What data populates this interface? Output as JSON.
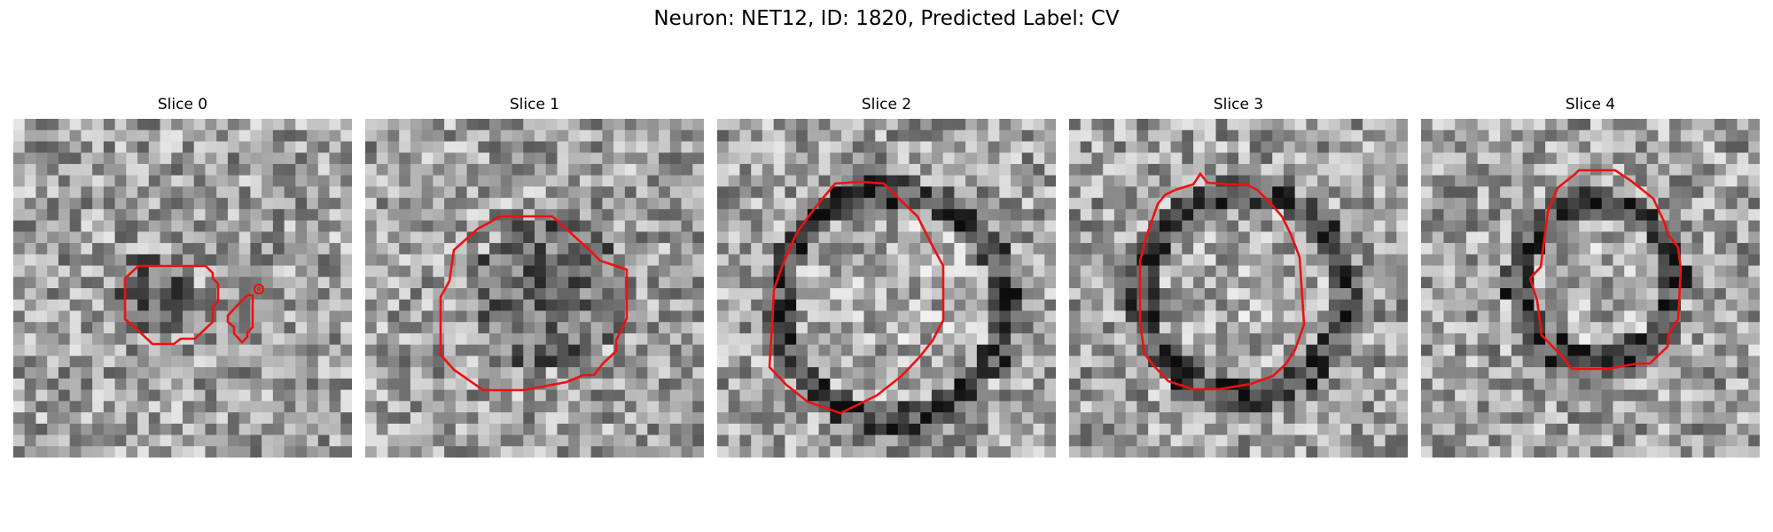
{
  "figure": {
    "title": "Neuron: NET12, ID: 1820, Predicted Label: CV"
  },
  "panels": [
    {
      "title": "Slice 0",
      "seed": 11,
      "outline_color": "#ee1111"
    },
    {
      "title": "Slice 1",
      "seed": 23,
      "outline_color": "#ee1111"
    },
    {
      "title": "Slice 2",
      "seed": 37,
      "outline_color": "#ee1111"
    },
    {
      "title": "Slice 3",
      "seed": 41,
      "outline_color": "#ee1111"
    },
    {
      "title": "Slice 4",
      "seed": 59,
      "outline_color": "#ee1111"
    }
  ],
  "colors": {
    "colormap": "grayscale",
    "contour": "#ee1111"
  }
}
